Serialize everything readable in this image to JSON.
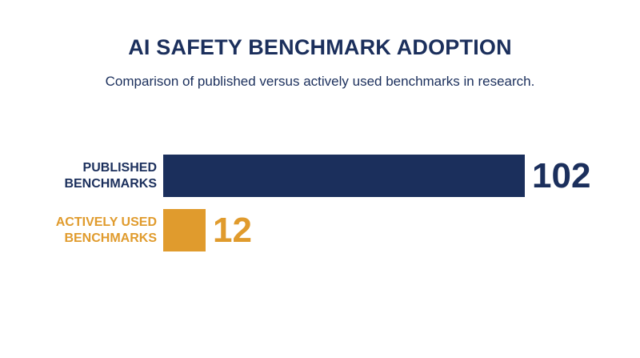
{
  "header": {
    "title": "AI SAFETY BENCHMARK ADOPTION",
    "subtitle": "Comparison of published versus actively used benchmarks in research."
  },
  "chart_data": {
    "type": "bar",
    "orientation": "horizontal",
    "title": "AI SAFETY BENCHMARK ADOPTION",
    "subtitle": "Comparison of published versus actively used benchmarks in research.",
    "categories": [
      "PUBLISHED\nBENCHMARKS",
      "ACTIVELY USED\nBENCHMARKS"
    ],
    "values": [
      102,
      12
    ],
    "value_labels": [
      "102",
      "12"
    ],
    "colors": [
      "#1b2f5c",
      "#e09b2d"
    ],
    "xlim": [
      0,
      102
    ],
    "grid": false,
    "legend": "none"
  }
}
